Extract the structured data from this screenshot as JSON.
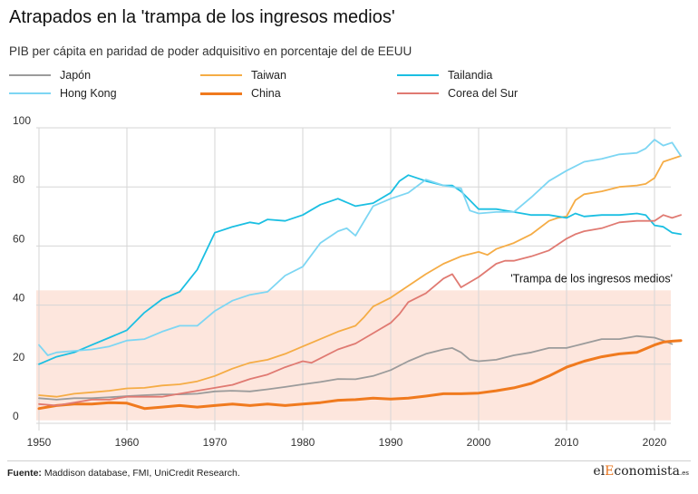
{
  "title": "Atrapados en la 'trampa de los ingresos medios'",
  "subtitle": "PIB per cápita en paridad de poder adquisitivo en porcentaje del de EEUU",
  "source_label": "Fuente:",
  "source_text": "Maddison database, FMI, UniCredit Research.",
  "logo": {
    "prefix": "el",
    "accent": "E",
    "rest": "conomista",
    "suffix": ".es"
  },
  "colors": {
    "Japón": "#9b9b9b",
    "Taiwan": "#f5ac45",
    "Tailandia": "#1bbfe2",
    "Hong Kong": "#7dd6f3",
    "China": "#f07a1e",
    "Corea del Sur": "#e07a72",
    "band": "#fde6dd"
  },
  "chart_data": {
    "type": "line",
    "title": "Atrapados en la 'trampa de los ingresos medios'",
    "subtitle": "PIB per cápita en paridad de poder adquisitivo en porcentaje del de EEUU",
    "xlabel": "",
    "ylabel": "",
    "xlim": [
      1950,
      2023
    ],
    "ylim": [
      0,
      100
    ],
    "x_ticks": [
      1950,
      1960,
      1970,
      1980,
      1990,
      2000,
      2010,
      2020
    ],
    "y_ticks": [
      0,
      20,
      40,
      60,
      80,
      100
    ],
    "grid": {
      "vertical": true,
      "horizontal": true
    },
    "legend": "top",
    "band": {
      "y_range": [
        1,
        45
      ],
      "label": "'Trampa de los ingresos medios'"
    },
    "series": [
      {
        "name": "Japón",
        "x": [
          1950,
          1952,
          1954,
          1956,
          1958,
          1960,
          1962,
          1964,
          1966,
          1968,
          1970,
          1972,
          1974,
          1976,
          1978,
          1980,
          1982,
          1984,
          1986,
          1988,
          1990,
          1992,
          1994,
          1996,
          1997,
          1998,
          1999,
          2000,
          2002,
          2004,
          2006,
          2008,
          2010,
          2012,
          2014,
          2016,
          2018,
          2020,
          2021,
          2022
        ],
        "values": [
          8.5,
          8,
          8.5,
          8.5,
          8.8,
          9.2,
          9.5,
          9.8,
          9.8,
          10,
          10.8,
          11,
          10.8,
          11.5,
          12.3,
          13.2,
          14,
          15,
          14.9,
          16,
          18,
          21,
          23.5,
          25,
          25.5,
          24,
          21.5,
          21,
          21.5,
          23,
          24,
          25.5,
          25.5,
          27,
          28.5,
          28.5,
          29.5,
          29,
          28,
          26.8
        ]
      },
      {
        "name": "Taiwan",
        "x": [
          1950,
          1952,
          1954,
          1956,
          1958,
          1960,
          1962,
          1964,
          1966,
          1968,
          1970,
          1972,
          1974,
          1976,
          1978,
          1980,
          1982,
          1984,
          1986,
          1987,
          1988,
          1990,
          1992,
          1994,
          1996,
          1998,
          2000,
          2001,
          2002,
          2004,
          2006,
          2008,
          2009,
          2010,
          2011,
          2012,
          2014,
          2016,
          2018,
          2019,
          2020,
          2021,
          2022,
          2023
        ],
        "values": [
          9.5,
          9,
          10,
          10.5,
          11,
          11.8,
          12,
          12.8,
          13.2,
          14.2,
          16,
          18.5,
          20.5,
          21.5,
          23.5,
          26,
          28.5,
          31,
          33,
          36,
          39.5,
          42.5,
          46.5,
          50.5,
          54,
          56.5,
          58,
          57,
          59,
          61,
          64,
          68.5,
          69.5,
          70,
          75.5,
          77.5,
          78.5,
          80,
          80.5,
          81,
          83,
          88.5,
          89.5,
          90.5
        ]
      },
      {
        "name": "Tailandia",
        "x": [
          1950,
          1952,
          1954,
          1956,
          1958,
          1960,
          1962,
          1964,
          1966,
          1968,
          1970,
          1972,
          1974,
          1975,
          1976,
          1978,
          1980,
          1982,
          1984,
          1986,
          1988,
          1990,
          1991,
          1992,
          1994,
          1996,
          1997,
          1998,
          2000,
          2002,
          2004,
          2006,
          2008,
          2010,
          2011,
          2012,
          2014,
          2016,
          2018,
          2019,
          2020,
          2021,
          2022,
          2023
        ],
        "values": [
          20,
          22.5,
          24,
          26.5,
          29,
          31.5,
          37.5,
          42,
          44.5,
          52,
          64.5,
          66.5,
          68,
          67.5,
          69,
          68.5,
          70.5,
          74,
          76,
          73.5,
          74.5,
          78,
          82,
          84,
          82,
          80.5,
          80.5,
          78.5,
          72.5,
          72.5,
          71.5,
          70.5,
          70.5,
          69.5,
          71,
          70,
          70.5,
          70.5,
          71,
          70.5,
          67,
          66.5,
          64.5,
          64
        ]
      },
      {
        "name": "Hong Kong",
        "x": [
          1950,
          1951,
          1952,
          1954,
          1956,
          1958,
          1960,
          1962,
          1964,
          1966,
          1968,
          1970,
          1972,
          1974,
          1976,
          1978,
          1980,
          1982,
          1984,
          1985,
          1986,
          1988,
          1990,
          1992,
          1994,
          1996,
          1998,
          1999,
          2000,
          2002,
          2004,
          2006,
          2008,
          2010,
          2012,
          2014,
          2016,
          2018,
          2019,
          2020,
          2021,
          2022,
          2023
        ],
        "values": [
          26.5,
          23,
          24,
          24.5,
          25,
          26,
          28,
          28.5,
          31,
          33,
          33,
          38,
          41.5,
          43.5,
          44.5,
          50,
          53,
          61,
          65,
          66,
          63.5,
          73.5,
          76,
          78,
          82.5,
          80.5,
          79.5,
          72,
          71,
          71.5,
          71.5,
          76.5,
          82,
          85.5,
          88.5,
          89.5,
          91,
          91.5,
          93,
          96,
          94,
          95,
          90.5
        ]
      },
      {
        "name": "China",
        "x": [
          1950,
          1952,
          1954,
          1956,
          1958,
          1960,
          1962,
          1964,
          1966,
          1968,
          1970,
          1972,
          1974,
          1976,
          1978,
          1980,
          1982,
          1984,
          1986,
          1988,
          1990,
          1992,
          1994,
          1996,
          1998,
          2000,
          2002,
          2004,
          2006,
          2008,
          2010,
          2012,
          2014,
          2016,
          2018,
          2020,
          2021,
          2022,
          2023
        ],
        "values": [
          5,
          6,
          6.5,
          6.5,
          7,
          6.8,
          5,
          5.5,
          6,
          5.5,
          6,
          6.5,
          6,
          6.5,
          6,
          6.5,
          7,
          7.8,
          8,
          8.5,
          8.2,
          8.5,
          9.2,
          10,
          10,
          10.2,
          11,
          12,
          13.5,
          16,
          19,
          21,
          22.5,
          23.5,
          24,
          26.5,
          27.5,
          27.8,
          28
        ]
      },
      {
        "name": "Corea del Sur",
        "x": [
          1950,
          1952,
          1954,
          1956,
          1958,
          1960,
          1962,
          1964,
          1966,
          1968,
          1970,
          1972,
          1974,
          1976,
          1978,
          1979,
          1980,
          1981,
          1982,
          1984,
          1986,
          1988,
          1990,
          1991,
          1992,
          1994,
          1996,
          1997,
          1998,
          2000,
          2002,
          2003,
          2004,
          2006,
          2008,
          2010,
          2011,
          2012,
          2014,
          2016,
          2018,
          2019,
          2020,
          2021,
          2022,
          2023
        ],
        "values": [
          6.5,
          6,
          7,
          8,
          8,
          9,
          9,
          9,
          10,
          11,
          12,
          13,
          15,
          16.5,
          19,
          20,
          21,
          20.5,
          22,
          25,
          27,
          30.5,
          34,
          37,
          41,
          44,
          49,
          50.5,
          46,
          49.5,
          54,
          55,
          55,
          56.5,
          58.5,
          62.5,
          64,
          65,
          66,
          68,
          68.5,
          68.5,
          68.5,
          70.5,
          69.5,
          70.5
        ]
      }
    ]
  }
}
